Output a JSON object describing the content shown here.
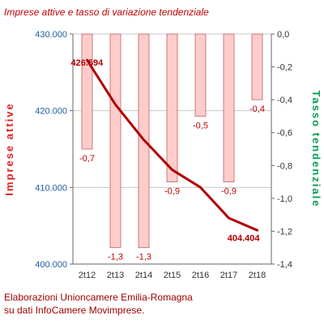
{
  "title": "Imprese attive e tasso di variazione tendenziale",
  "footer": {
    "line1": "Elaborazioni Unioncamere Emilia-Romagna",
    "line2": "su dati InfoCamere Movimprese."
  },
  "colors": {
    "bar_fill": "#ffcccc",
    "bar_stroke": "#c06060",
    "line": "#b00000",
    "left_axis_text": "#1f5fa0",
    "right_axis_text": "#333333",
    "left_axis_label": "#e02020",
    "right_axis_label": "#00a050",
    "grid": "#c8c8c8"
  },
  "chart_data": {
    "type": "bar+line",
    "categories": [
      "2t12",
      "2t13",
      "2t14",
      "2t15",
      "2t16",
      "2t17",
      "2t18"
    ],
    "series": [
      {
        "name": "Imprese attive",
        "type": "line",
        "axis": "left",
        "values": [
          426594,
          420800,
          416200,
          412300,
          410000,
          406000,
          404404
        ],
        "labels": [
          "426.594",
          "",
          "",
          "",
          "",
          "",
          "404.404"
        ]
      },
      {
        "name": "Tasso tendenziale",
        "type": "bar",
        "axis": "right",
        "values": [
          -0.7,
          -1.3,
          -1.3,
          -0.9,
          -0.5,
          -0.9,
          -0.4
        ],
        "labels": [
          "-0,7",
          "-1,3",
          "-1,3",
          "-0,9",
          "-0,5",
          "-0,9",
          "-0,4"
        ]
      }
    ],
    "y_left": {
      "label": "Imprese attive",
      "range": [
        400000,
        430000
      ],
      "ticks": [
        400000,
        410000,
        420000,
        430000
      ],
      "tick_labels": [
        "400.000",
        "410.000",
        "420.000",
        "430.000"
      ]
    },
    "y_right": {
      "label": "Tasso tendenziale",
      "range": [
        -1.4,
        0
      ],
      "ticks": [
        0,
        -0.2,
        -0.4,
        -0.6,
        -0.8,
        -1.0,
        -1.2,
        -1.4
      ],
      "tick_labels": [
        "0,0",
        "-0,2",
        "-0,4",
        "-0,6",
        "-0,8",
        "-1,0",
        "-1,2",
        "-1,4"
      ]
    },
    "grid": true
  }
}
